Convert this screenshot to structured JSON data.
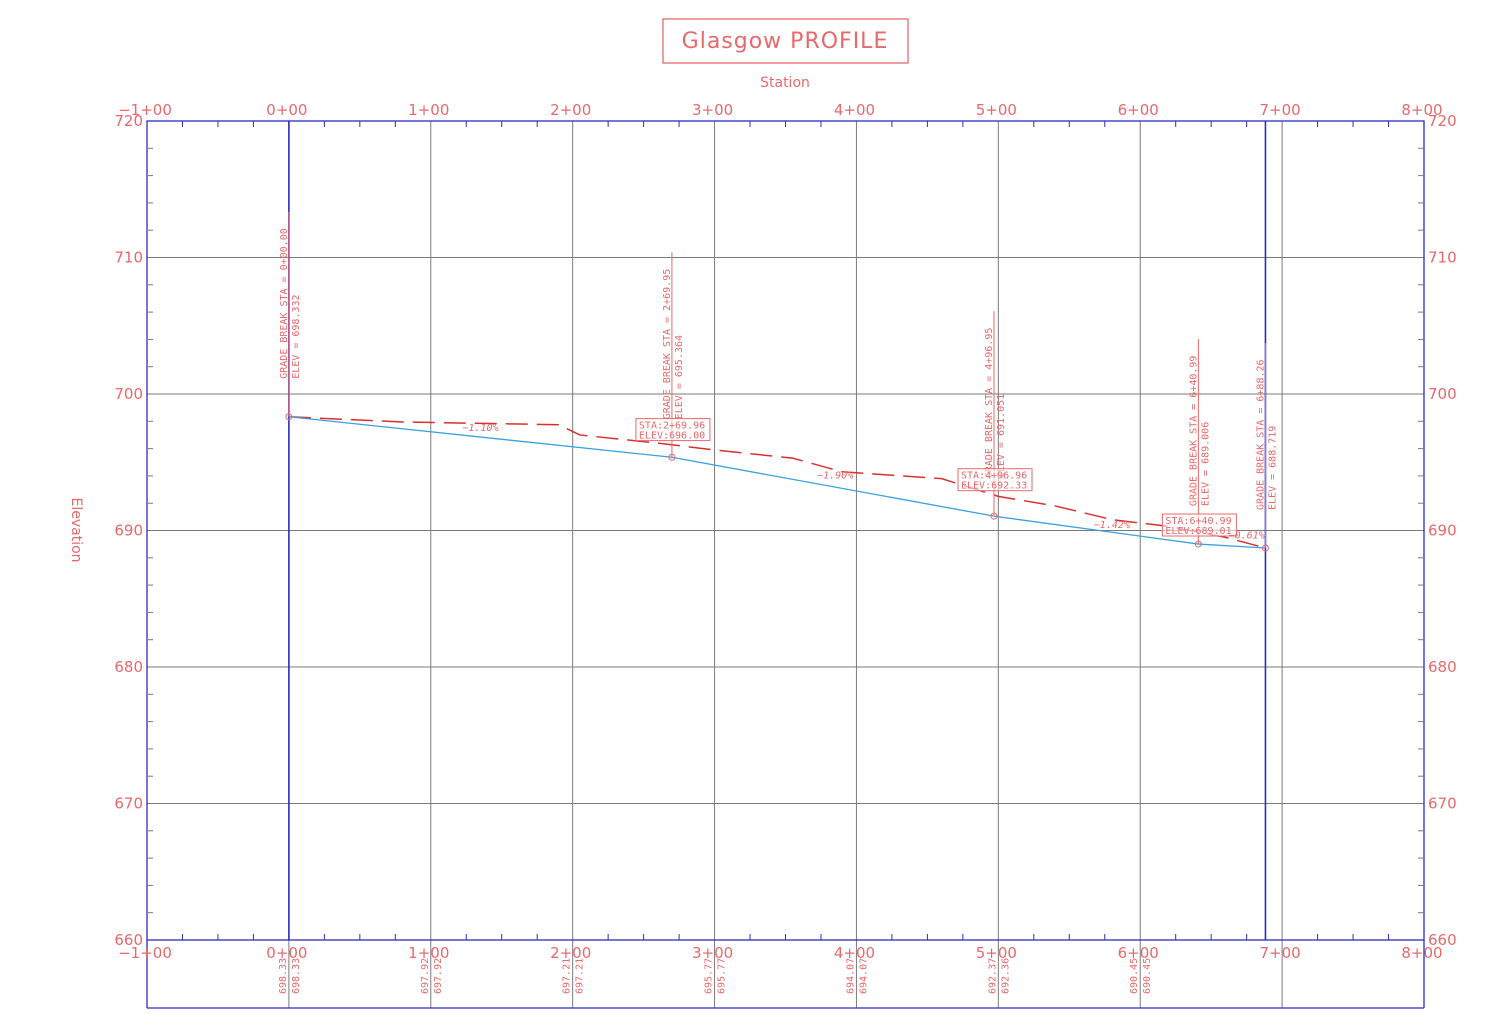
{
  "title": "Glasgow PROFILE",
  "top_axis_label": "Station",
  "left_axis_label": "Elevation",
  "colors": {
    "annotation": "#e8696b",
    "frame": "#2c2cc4",
    "grid": "#7a7a7a",
    "minor_grid": "#c8c8c8",
    "profile_line": "#3aa0e0",
    "ground_line": "#d92f2f"
  },
  "chart_data": {
    "type": "line",
    "xlim": [
      -100,
      800
    ],
    "ylim": [
      660,
      720
    ],
    "station_ticks": [
      {
        "x": -100,
        "label": "−1+00"
      },
      {
        "x": 0,
        "label": "0+00"
      },
      {
        "x": 100,
        "label": "1+00"
      },
      {
        "x": 200,
        "label": "2+00"
      },
      {
        "x": 300,
        "label": "3+00"
      },
      {
        "x": 400,
        "label": "4+00"
      },
      {
        "x": 500,
        "label": "5+00"
      },
      {
        "x": 600,
        "label": "6+00"
      },
      {
        "x": 700,
        "label": "7+00"
      },
      {
        "x": 800,
        "label": "8+00"
      }
    ],
    "elevation_ticks": [
      {
        "y": 720,
        "label": "720"
      },
      {
        "y": 710,
        "label": "710"
      },
      {
        "y": 700,
        "label": "700"
      },
      {
        "y": 690,
        "label": "690"
      },
      {
        "y": 680,
        "label": "680"
      },
      {
        "y": 670,
        "label": "670"
      },
      {
        "y": 660,
        "label": "660"
      }
    ],
    "boundary_stations": [
      0,
      688.26
    ],
    "design_profile": {
      "points": [
        {
          "x": 0,
          "y": 698.332
        },
        {
          "x": 269.95,
          "y": 695.364
        },
        {
          "x": 496.95,
          "y": 691.051
        },
        {
          "x": 640.99,
          "y": 689.006
        },
        {
          "x": 688.26,
          "y": 688.719
        }
      ]
    },
    "existing_ground": {
      "points": [
        {
          "x": 0,
          "y": 698.33
        },
        {
          "x": 80,
          "y": 697.95
        },
        {
          "x": 190,
          "y": 697.75
        },
        {
          "x": 205,
          "y": 697.0
        },
        {
          "x": 260,
          "y": 696.4
        },
        {
          "x": 300,
          "y": 695.9
        },
        {
          "x": 355,
          "y": 695.3
        },
        {
          "x": 390,
          "y": 694.3
        },
        {
          "x": 460,
          "y": 693.8
        },
        {
          "x": 500,
          "y": 692.5
        },
        {
          "x": 540,
          "y": 691.8
        },
        {
          "x": 580,
          "y": 690.8
        },
        {
          "x": 620,
          "y": 690.3
        },
        {
          "x": 660,
          "y": 689.5
        },
        {
          "x": 688.26,
          "y": 688.72
        }
      ]
    },
    "grade_breaks": [
      {
        "x": 0,
        "y": 698.332,
        "sta": "GRADE BREAK STA = 0+00.00",
        "elev": "ELEV =   698.332"
      },
      {
        "x": 269.95,
        "y": 695.364,
        "sta": "GRADE BREAK STA = 2+69.95",
        "elev": "ELEV =   695.364"
      },
      {
        "x": 496.95,
        "y": 691.051,
        "sta": "GRADE BREAK STA = 4+96.95",
        "elev": "ELEV =   691.051"
      },
      {
        "x": 640.99,
        "y": 689.006,
        "sta": "GRADE BREAK STA = 6+40.99",
        "elev": "ELEV =   689.006"
      },
      {
        "x": 688.26,
        "y": 688.719,
        "sta": "GRADE BREAK STA = 6+88.26",
        "elev": "ELEV =   688.719"
      }
    ],
    "point_labels": [
      {
        "x": 269.95,
        "y": 696.0,
        "sta": "STA:2+69.96",
        "elev": "ELEV:696.00"
      },
      {
        "x": 496.95,
        "y": 692.33,
        "sta": "STA:4+96.96",
        "elev": "ELEV:692.33"
      },
      {
        "x": 640.99,
        "y": 689.01,
        "sta": "STA:6+40.99",
        "elev": "ELEV:689.01"
      }
    ],
    "grade_labels": [
      {
        "x": 135,
        "y": 697.3,
        "text": "−1.10%"
      },
      {
        "x": 385,
        "y": 693.8,
        "text": "−1.90%"
      },
      {
        "x": 580,
        "y": 690.2,
        "text": "−1.42%"
      },
      {
        "x": 675,
        "y": 689.4,
        "text": "−0.61%"
      }
    ],
    "bottom_band": [
      {
        "x": 0,
        "a": "698.33",
        "b": "698.33"
      },
      {
        "x": 100,
        "a": "697.92",
        "b": "697.92"
      },
      {
        "x": 200,
        "a": "697.21",
        "b": "697.21"
      },
      {
        "x": 300,
        "a": "695.77",
        "b": "695.77"
      },
      {
        "x": 400,
        "a": "694.07",
        "b": "694.07"
      },
      {
        "x": 500,
        "a": "692.37",
        "b": "692.36"
      },
      {
        "x": 600,
        "a": "690.45",
        "b": "690.45"
      }
    ]
  }
}
